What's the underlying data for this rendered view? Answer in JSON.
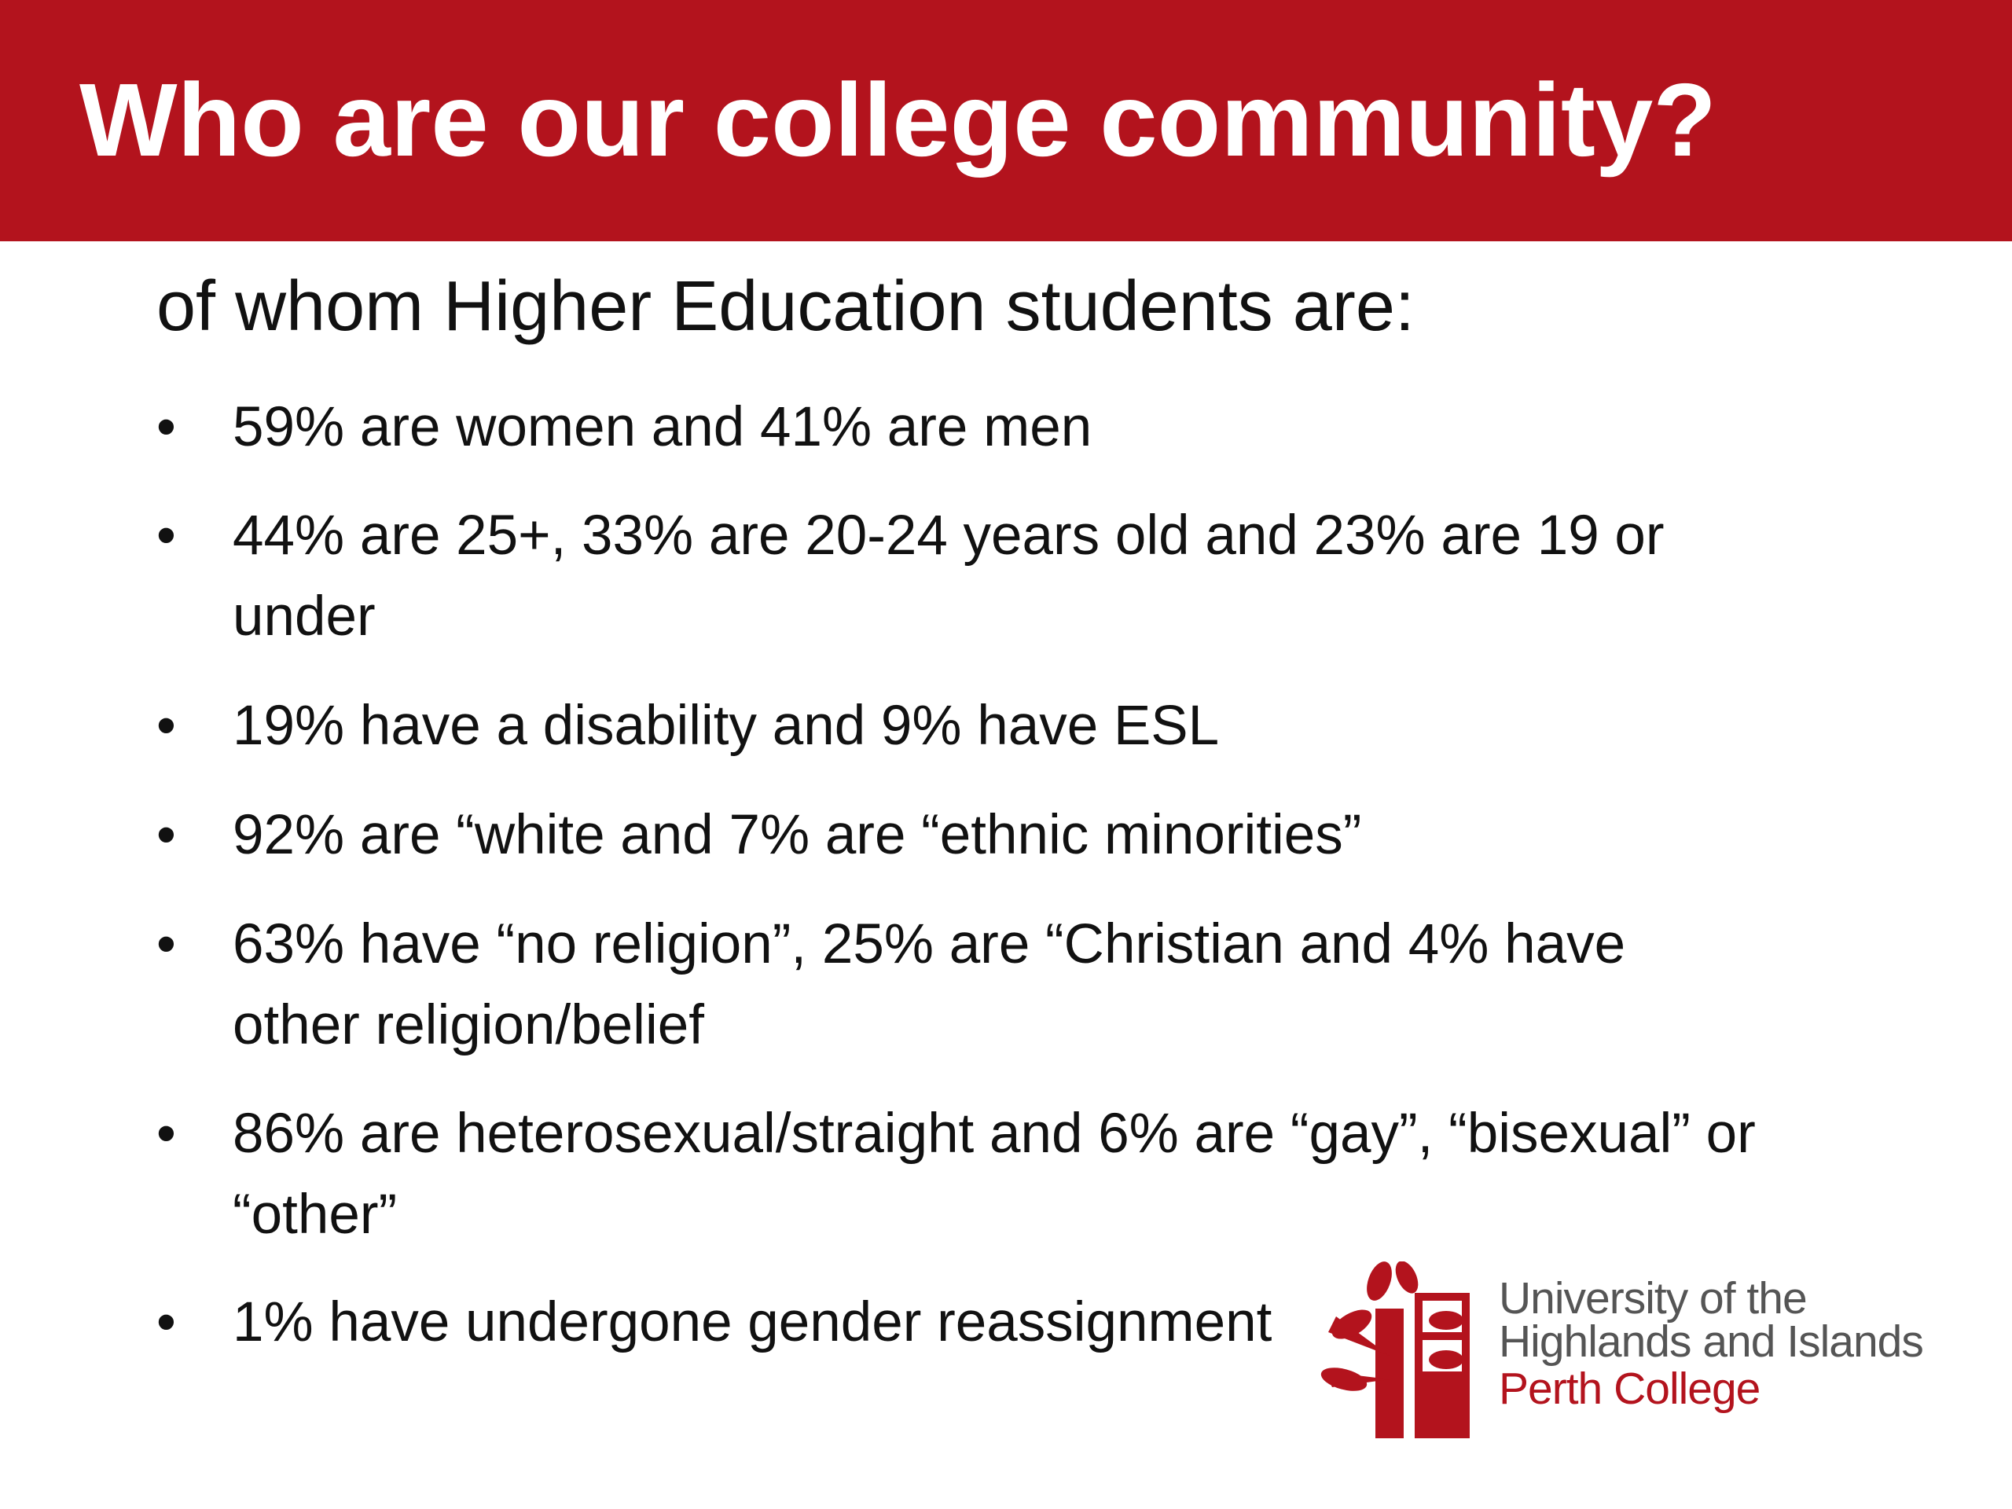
{
  "header": {
    "title": "Who are our college community?"
  },
  "subtitle": "of whom Higher Education students are:",
  "bullets": [
    "59% are women and 41% are men",
    "44% are 25+, 33% are 20-24 years old and 23% are 19 or under",
    "19% have a disability and 9% have ESL",
    "92% are “white and 7% are “ethnic minorities”",
    "63% have “no religion”, 25% are “Christian and 4% have other religion/belief",
    "86% are heterosexual/straight and 6% are “gay”, “bisexual” or “other”",
    "1% have undergone gender reassignment"
  ],
  "logo": {
    "lines": [
      "University of the",
      "Highlands and Islands",
      "Perth College"
    ]
  }
}
